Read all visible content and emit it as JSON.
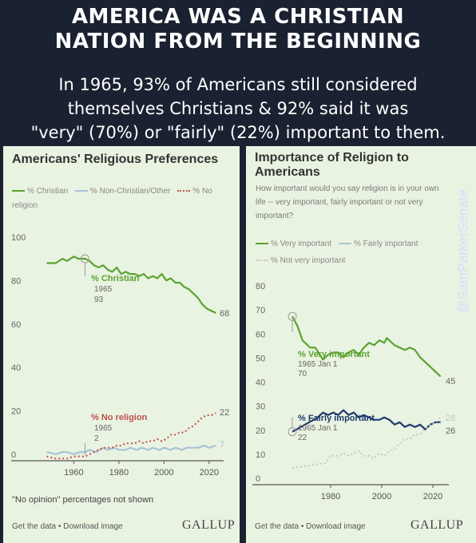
{
  "header": {
    "headline_line1": "AMERICA WAS A CHRISTIAN",
    "headline_line2": "NATION FROM THE BEGINNING",
    "sub_line1": "In 1965, 93% of Americans still considered",
    "sub_line2": "themselves Christians & 92% said it was",
    "sub_line3": "\"very\" (70%) or \"fairly\" (22%) important to them."
  },
  "watermark": "@SamParkerSenate",
  "left_panel": {
    "title": "Americans' Religious Preferences",
    "legend": [
      "% Christian",
      "% Non-Christian/Other",
      "% No religion"
    ],
    "note": "\"No opinion\" percentages not shown",
    "footer": "Get the data • Download image",
    "logo": "GALLUP"
  },
  "right_panel": {
    "title_line1": "Importance of Religion to",
    "title_line2": "Americans",
    "question_line1": "How important would you say religion is in your own",
    "question_line2": "life -- very important, fairly important or not very",
    "question_line3": "important?",
    "legend": [
      "% Very important",
      "% Fairly important",
      "% Not very important"
    ],
    "footer": "Get the data • Download image",
    "logo": "GALLUP"
  },
  "colors": {
    "christian": "#5aa332",
    "non_christian": "#a9c3d8",
    "no_religion": "#c0504d",
    "very": "#5aa332",
    "fairly": "#1f3a6e",
    "not_very": "#c7c7c7"
  },
  "chart_data": [
    {
      "type": "line",
      "title": "Americans' Religious Preferences",
      "x_ticks": [
        1960,
        1980,
        2000,
        2020
      ],
      "y_ticks": [
        0,
        20,
        40,
        60,
        80,
        100
      ],
      "xlim": [
        1945,
        2025
      ],
      "ylim": [
        0,
        100
      ],
      "grid": false,
      "legend_position": "top-left",
      "series": [
        {
          "name": "% Christian",
          "color": "#5aa332",
          "points": [
            [
              1948,
              91
            ],
            [
              1952,
              91
            ],
            [
              1955,
              93
            ],
            [
              1957,
              92
            ],
            [
              1960,
              94
            ],
            [
              1962,
              93
            ],
            [
              1963,
              93
            ],
            [
              1965,
              93
            ],
            [
              1967,
              92
            ],
            [
              1969,
              90
            ],
            [
              1971,
              89
            ],
            [
              1973,
              90
            ],
            [
              1975,
              88
            ],
            [
              1977,
              87
            ],
            [
              1979,
              89
            ],
            [
              1981,
              86
            ],
            [
              1983,
              87
            ],
            [
              1985,
              86
            ],
            [
              1987,
              86
            ],
            [
              1989,
              85
            ],
            [
              1991,
              86
            ],
            [
              1993,
              84
            ],
            [
              1995,
              85
            ],
            [
              1997,
              84
            ],
            [
              1999,
              86
            ],
            [
              2001,
              83
            ],
            [
              2003,
              84
            ],
            [
              2005,
              82
            ],
            [
              2007,
              82
            ],
            [
              2009,
              80
            ],
            [
              2011,
              79
            ],
            [
              2013,
              77
            ],
            [
              2015,
              75
            ],
            [
              2017,
              72
            ],
            [
              2019,
              70
            ],
            [
              2021,
              69
            ],
            [
              2023,
              68
            ]
          ],
          "labels": [
            {
              "text": "% Christian",
              "anchor": [
                1965,
                93
              ]
            },
            {
              "text": "1965",
              "anchor": [
                1965,
                93
              ]
            },
            {
              "text": "93",
              "anchor": [
                1965,
                93
              ]
            },
            {
              "text": "68",
              "anchor": [
                2023,
                68
              ]
            }
          ]
        },
        {
          "name": "% Non-Christian/Other",
          "color": "#a9c3d8",
          "points": [
            [
              1948,
              4
            ],
            [
              1952,
              3
            ],
            [
              1955,
              4
            ],
            [
              1957,
              4
            ],
            [
              1960,
              3
            ],
            [
              1963,
              4
            ],
            [
              1965,
              4
            ],
            [
              1967,
              5
            ],
            [
              1970,
              4
            ],
            [
              1973,
              6
            ],
            [
              1975,
              5
            ],
            [
              1978,
              6
            ],
            [
              1980,
              5
            ],
            [
              1983,
              5
            ],
            [
              1985,
              6
            ],
            [
              1988,
              5
            ],
            [
              1990,
              6
            ],
            [
              1993,
              5
            ],
            [
              1995,
              6
            ],
            [
              1998,
              5
            ],
            [
              2000,
              6
            ],
            [
              2003,
              5
            ],
            [
              2005,
              6
            ],
            [
              2008,
              5
            ],
            [
              2010,
              6
            ],
            [
              2013,
              6
            ],
            [
              2015,
              6
            ],
            [
              2018,
              7
            ],
            [
              2020,
              6
            ],
            [
              2023,
              7
            ]
          ],
          "labels": [
            {
              "text": "7",
              "anchor": [
                2023,
                7
              ]
            }
          ]
        },
        {
          "name": "% No religion",
          "color": "#c0504d",
          "dashed": true,
          "points": [
            [
              1948,
              2
            ],
            [
              1952,
              1
            ],
            [
              1955,
              1
            ],
            [
              1957,
              1
            ],
            [
              1960,
              2
            ],
            [
              1963,
              2
            ],
            [
              1965,
              2
            ],
            [
              1967,
              3
            ],
            [
              1969,
              4
            ],
            [
              1971,
              5
            ],
            [
              1973,
              6
            ],
            [
              1975,
              6
            ],
            [
              1977,
              6
            ],
            [
              1979,
              7
            ],
            [
              1981,
              7
            ],
            [
              1983,
              8
            ],
            [
              1985,
              8
            ],
            [
              1987,
              8
            ],
            [
              1989,
              9
            ],
            [
              1991,
              8
            ],
            [
              1993,
              9
            ],
            [
              1995,
              9
            ],
            [
              1997,
              10
            ],
            [
              1999,
              9
            ],
            [
              2001,
              10
            ],
            [
              2003,
              12
            ],
            [
              2005,
              12
            ],
            [
              2007,
              13
            ],
            [
              2009,
              13
            ],
            [
              2011,
              15
            ],
            [
              2013,
              16
            ],
            [
              2015,
              18
            ],
            [
              2017,
              20
            ],
            [
              2019,
              21
            ],
            [
              2021,
              21
            ],
            [
              2023,
              22
            ]
          ],
          "labels": [
            {
              "text": "% No religion",
              "anchor": [
                1965,
                2
              ]
            },
            {
              "text": "1965",
              "anchor": [
                1965,
                2
              ]
            },
            {
              "text": "2",
              "anchor": [
                1965,
                2
              ]
            },
            {
              "text": "22",
              "anchor": [
                2023,
                22
              ]
            }
          ]
        }
      ]
    },
    {
      "type": "line",
      "title": "Importance of Religion to Americans",
      "x_ticks": [
        1980,
        2000,
        2020
      ],
      "y_ticks": [
        0,
        10,
        20,
        30,
        40,
        50,
        60,
        70,
        80
      ],
      "xlim": [
        1960,
        2025
      ],
      "ylim": [
        0,
        85
      ],
      "grid": false,
      "legend_position": "top-left",
      "series": [
        {
          "name": "% Very important",
          "color": "#5aa332",
          "points": [
            [
              1965,
              70
            ],
            [
              1967,
              66
            ],
            [
              1969,
              60
            ],
            [
              1972,
              57
            ],
            [
              1974,
              57
            ],
            [
              1977,
              52
            ],
            [
              1979,
              54
            ],
            [
              1981,
              55
            ],
            [
              1983,
              55
            ],
            [
              1985,
              53
            ],
            [
              1987,
              55
            ],
            [
              1989,
              56
            ],
            [
              1991,
              54
            ],
            [
              1993,
              57
            ],
            [
              1995,
              59
            ],
            [
              1997,
              58
            ],
            [
              1999,
              60
            ],
            [
              2001,
              59
            ],
            [
              2002,
              61
            ],
            [
              2003,
              60
            ],
            [
              2005,
              58
            ],
            [
              2007,
              57
            ],
            [
              2009,
              56
            ],
            [
              2011,
              57
            ],
            [
              2013,
              56
            ],
            [
              2015,
              53
            ],
            [
              2017,
              51
            ],
            [
              2019,
              49
            ],
            [
              2021,
              47
            ],
            [
              2023,
              45
            ]
          ],
          "labels": [
            {
              "text": "% Very important",
              "anchor": [
                1965,
                70
              ]
            },
            {
              "text": "1965 Jan 1",
              "anchor": [
                1965,
                70
              ]
            },
            {
              "text": "70",
              "anchor": [
                1965,
                70
              ]
            },
            {
              "text": "45",
              "anchor": [
                2023,
                45
              ]
            }
          ]
        },
        {
          "name": "% Fairly important",
          "color": "#1f3a6e",
          "points": [
            [
              1965,
              22
            ],
            [
              1975,
              28
            ],
            [
              1977,
              30
            ],
            [
              1979,
              29
            ],
            [
              1981,
              30
            ],
            [
              1983,
              29
            ],
            [
              1985,
              31
            ],
            [
              1987,
              29
            ],
            [
              1989,
              30
            ],
            [
              1991,
              28
            ],
            [
              1993,
              29
            ],
            [
              1995,
              28
            ],
            [
              1997,
              27
            ],
            [
              1999,
              27
            ],
            [
              2001,
              28
            ],
            [
              2003,
              27
            ],
            [
              2005,
              25
            ],
            [
              2007,
              26
            ],
            [
              2009,
              24
            ],
            [
              2011,
              25
            ],
            [
              2013,
              24
            ],
            [
              2015,
              25
            ],
            [
              2017,
              23
            ],
            [
              2019,
              25
            ],
            [
              2021,
              26
            ],
            [
              2023,
              26
            ]
          ],
          "labels": [
            {
              "text": "% Fairly important",
              "anchor": [
                1965,
                22
              ]
            },
            {
              "text": "1965 Jan 1",
              "anchor": [
                1965,
                22
              ]
            },
            {
              "text": "22",
              "anchor": [
                1965,
                22
              ]
            },
            {
              "text": "26",
              "anchor": [
                2023,
                26
              ]
            }
          ]
        },
        {
          "name": "% Not very important",
          "color": "#c7c7c7",
          "dashed": true,
          "points": [
            [
              1965,
              7
            ],
            [
              1978,
              9
            ],
            [
              1980,
              12
            ],
            [
              1983,
              12
            ],
            [
              1985,
              13
            ],
            [
              1987,
              12
            ],
            [
              1989,
              13
            ],
            [
              1991,
              14
            ],
            [
              1993,
              12
            ],
            [
              1995,
              12
            ],
            [
              1997,
              11
            ],
            [
              1999,
              13
            ],
            [
              2001,
              12
            ],
            [
              2003,
              14
            ],
            [
              2005,
              15
            ],
            [
              2007,
              17
            ],
            [
              2009,
              19
            ],
            [
              2011,
              19
            ],
            [
              2013,
              21
            ],
            [
              2015,
              21
            ],
            [
              2017,
              23
            ],
            [
              2019,
              25
            ],
            [
              2021,
              26
            ],
            [
              2023,
              28
            ]
          ],
          "labels": [
            {
              "text": "28",
              "anchor": [
                2023,
                28
              ]
            }
          ]
        }
      ]
    }
  ]
}
